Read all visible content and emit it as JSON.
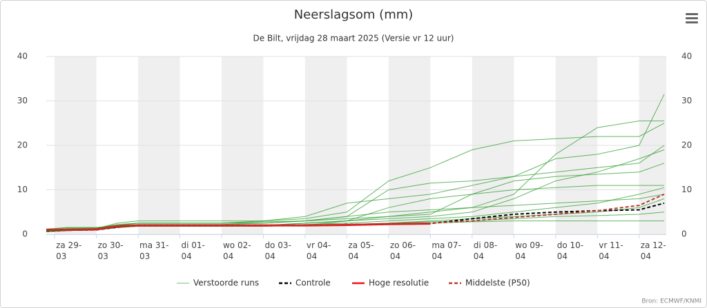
{
  "chart_data": {
    "type": "line",
    "title": "Neerslagsom (mm)",
    "subtitle": "De Bilt, vrijdag 28 maart 2025 (Versie vr 12 uur)",
    "credits": "Bron: ECMWF/KNMI",
    "x": [
      -0.2,
      0.3,
      1,
      1.5,
      2,
      3,
      4,
      5,
      6,
      7,
      8,
      9,
      10,
      11,
      12,
      13,
      14,
      14.6
    ],
    "xlim": [
      -0.2,
      14.65
    ],
    "xticks": [
      {
        "value": 0,
        "label": "za 29-03"
      },
      {
        "value": 1,
        "label": "zo 30-03"
      },
      {
        "value": 2,
        "label": "ma 31-03"
      },
      {
        "value": 3,
        "label": "di 01-04"
      },
      {
        "value": 4,
        "label": "wo 02-04"
      },
      {
        "value": 5,
        "label": "do 03-04"
      },
      {
        "value": 6,
        "label": "vr 04-04"
      },
      {
        "value": 7,
        "label": "za 05-04"
      },
      {
        "value": 8,
        "label": "zo 06-04"
      },
      {
        "value": 9,
        "label": "ma 07-04"
      },
      {
        "value": 10,
        "label": "di 08-04"
      },
      {
        "value": 11,
        "label": "wo 09-04"
      },
      {
        "value": 12,
        "label": "do 10-04"
      },
      {
        "value": 13,
        "label": "vr 11-04"
      },
      {
        "value": 14,
        "label": "za 12-04"
      }
    ],
    "ylim": [
      0,
      40
    ],
    "yticks": [
      0,
      10,
      20,
      30,
      40
    ],
    "y2lim": [
      0,
      40
    ],
    "y2ticks": [
      0,
      10,
      20,
      30,
      40
    ],
    "grid": true,
    "ensemble": {
      "name": "Verstoorde runs",
      "color": "#2e9e2e",
      "legend_color": "#9ed49e",
      "members": [
        [
          1,
          1.5,
          1.5,
          2,
          2.5,
          2.5,
          2.5,
          2.5,
          3,
          4,
          10,
          11.5,
          12,
          13,
          17,
          18,
          20,
          31.5
        ],
        [
          1,
          1.2,
          1.3,
          2.5,
          3,
          3,
          3,
          3,
          3.5,
          5,
          12,
          15,
          19,
          21,
          21.5,
          22,
          22,
          25
        ],
        [
          0.5,
          0.8,
          1,
          1.5,
          2,
          2,
          2,
          2,
          2,
          3,
          4,
          5,
          6,
          9,
          18,
          24,
          25.5,
          25.5
        ],
        [
          1.2,
          1.5,
          1.5,
          2,
          2.5,
          2.5,
          2.5,
          3,
          4,
          7,
          8,
          9,
          11,
          13,
          14,
          15,
          16,
          20
        ],
        [
          0.8,
          1,
          1,
          1.8,
          2,
          2,
          2,
          2,
          2.5,
          3,
          3.5,
          4,
          5,
          8,
          12,
          14,
          17,
          19
        ],
        [
          1,
          1,
          1.2,
          2,
          2,
          2,
          2,
          2,
          2.5,
          3,
          6,
          8,
          9,
          10,
          10.5,
          11,
          11,
          11
        ],
        [
          0.6,
          0.8,
          1,
          1.5,
          1.8,
          1.8,
          1.8,
          1.8,
          2,
          2.2,
          2.5,
          3,
          3.5,
          4,
          4.5,
          5,
          6,
          8
        ],
        [
          1,
          1.2,
          1.2,
          2,
          2.2,
          2.2,
          2.2,
          2.5,
          3,
          4,
          5,
          5.5,
          6,
          6.5,
          7,
          7.5,
          8,
          9
        ],
        [
          0.7,
          0.9,
          1,
          1.6,
          1.8,
          1.8,
          1.8,
          1.8,
          2,
          2,
          2.2,
          2.5,
          2.8,
          3,
          3,
          3,
          3,
          3
        ],
        [
          1,
          1.3,
          1.4,
          2.2,
          2.5,
          2.5,
          2.5,
          2.8,
          3,
          3.5,
          4,
          4.5,
          9,
          12,
          13,
          13.5,
          14,
          16
        ],
        [
          0.9,
          1,
          1.1,
          1.7,
          2,
          2,
          2,
          2,
          2.2,
          2.5,
          3,
          3.5,
          4,
          5,
          6,
          7,
          9,
          10.5
        ],
        [
          0.8,
          1,
          1,
          1.5,
          1.8,
          1.8,
          1.8,
          2,
          2,
          2.2,
          2.5,
          2.8,
          3,
          3.5,
          4,
          4.2,
          4.5,
          5
        ]
      ]
    },
    "series": [
      {
        "name": "Controle",
        "color": "#000000",
        "dash": true,
        "values": [
          0.8,
          0.9,
          1,
          1.6,
          2,
          2,
          2,
          2,
          2,
          2.2,
          2.3,
          2.4,
          3.5,
          4.5,
          5,
          5.3,
          5.5,
          7
        ]
      },
      {
        "name": "Hoge resolutie",
        "color": "#e8141c",
        "dash": false,
        "values": [
          1,
          1,
          1.1,
          1.8,
          2,
          2,
          2,
          2,
          2,
          2.1,
          2.3,
          2.4,
          null,
          null,
          null,
          null,
          null,
          null
        ]
      },
      {
        "name": "Middelste (P50)",
        "color": "#b53a30",
        "dash": true,
        "values": [
          0.9,
          1,
          1.1,
          1.7,
          2,
          2,
          2,
          2,
          2,
          2.2,
          2.3,
          2.5,
          3,
          3.8,
          4.5,
          5.3,
          6.5,
          9
        ]
      }
    ]
  }
}
